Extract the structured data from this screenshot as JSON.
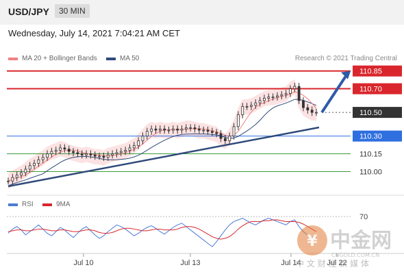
{
  "header": {
    "pair": "USD/JPY",
    "timeframe": "30 MIN"
  },
  "date_line": "Wednesday, July 14, 2021 7:04:21 AM CET",
  "legend": [
    {
      "label": "MA 20 + Bollinger Bands",
      "color": "#f08080"
    },
    {
      "label": "MA 50",
      "color": "#2f4a7a"
    }
  ],
  "credit": "Research © 2021 Trading Central",
  "rsi_legend": [
    {
      "label": "RSI",
      "color": "#4a7bd8"
    },
    {
      "label": "9MA",
      "color": "#d9262c"
    }
  ],
  "watermark": {
    "brand": "中金网",
    "domain": "CNGOLD.COM.CN",
    "tagline": "中 文 财 经 新 媒 体"
  },
  "chart_data": {
    "type": "line",
    "title": "USD/JPY",
    "price_axis_range": [
      109.8,
      110.9
    ],
    "levels": [
      {
        "label": "110.85",
        "value": 110.85,
        "kind": "resistance",
        "color": "#d9262c"
      },
      {
        "label": "110.70",
        "value": 110.7,
        "kind": "resistance",
        "color": "#d9262c"
      },
      {
        "label": "110.50",
        "value": 110.5,
        "kind": "current",
        "color": "#333333"
      },
      {
        "label": "110.30",
        "value": 110.3,
        "kind": "pivot",
        "color": "#2f6fe0"
      },
      {
        "label": "110.15",
        "value": 110.15,
        "kind": "support",
        "color": "#3a9a3a"
      },
      {
        "label": "110.00",
        "value": 110.0,
        "kind": "support",
        "color": "#3a9a3a"
      }
    ],
    "x_tick_labels": [
      "Jul 10",
      "Jul 13",
      "Jul 14",
      "Jul 22"
    ],
    "price_series": [
      109.92,
      109.95,
      109.97,
      109.99,
      110.02,
      110.05,
      110.07,
      110.1,
      110.12,
      110.15,
      110.17,
      110.18,
      110.2,
      110.19,
      110.17,
      110.16,
      110.15,
      110.14,
      110.15,
      110.14,
      110.13,
      110.13,
      110.12,
      110.14,
      110.15,
      110.16,
      110.17,
      110.18,
      110.2,
      110.22,
      110.26,
      110.3,
      110.34,
      110.36,
      110.35,
      110.36,
      110.35,
      110.35,
      110.36,
      110.35,
      110.36,
      110.37,
      110.37,
      110.36,
      110.35,
      110.35,
      110.34,
      110.33,
      110.32,
      110.28,
      110.26,
      110.3,
      110.38,
      110.48,
      110.55,
      110.55,
      110.56,
      110.58,
      110.6,
      110.62,
      110.63,
      110.63,
      110.64,
      110.65,
      110.66,
      110.7,
      110.72,
      110.6,
      110.54,
      110.52,
      110.5,
      110.5
    ],
    "rsi_levels": [
      {
        "label": "70",
        "value": 70
      }
    ],
    "rsi_series": [
      50,
      55,
      58,
      54,
      48,
      52,
      56,
      60,
      55,
      50,
      47,
      52,
      57,
      54,
      49,
      45,
      50,
      55,
      58,
      53,
      48,
      44,
      47,
      52,
      56,
      60,
      58,
      55,
      51,
      47,
      50,
      54,
      57,
      59,
      56,
      52,
      49,
      53,
      57,
      60,
      62,
      58,
      54,
      50,
      46,
      42,
      38,
      34,
      40,
      47,
      54,
      60,
      64,
      66,
      68,
      65,
      62,
      60,
      63,
      66,
      68,
      66,
      64,
      62,
      60,
      64,
      66,
      58,
      52,
      48,
      45,
      46
    ],
    "rsi_ma_series": [
      52,
      53,
      54,
      54,
      53,
      53,
      54,
      55,
      55,
      54,
      53,
      53,
      54,
      54,
      53,
      52,
      52,
      53,
      54,
      54,
      53,
      51,
      50,
      50,
      51,
      53,
      55,
      56,
      56,
      55,
      54,
      53,
      53,
      54,
      55,
      55,
      54,
      54,
      54,
      55,
      57,
      58,
      58,
      57,
      55,
      52,
      49,
      46,
      44,
      43,
      44,
      46,
      50,
      55,
      59,
      62,
      64,
      64,
      64,
      65,
      65,
      66,
      66,
      65,
      64,
      64,
      64,
      63,
      61,
      58,
      55,
      52
    ],
    "projection": {
      "from": 110.5,
      "to": 110.85
    }
  }
}
